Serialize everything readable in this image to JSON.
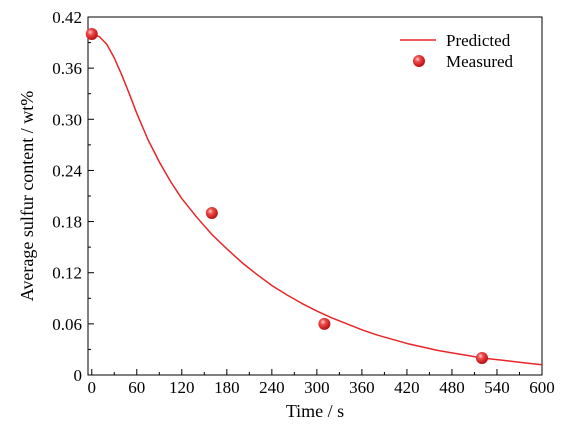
{
  "chart_data": {
    "type": "line",
    "xlabel": "Time / s",
    "ylabel": "Average sulfur content / wt%",
    "xlim": [
      -5,
      600
    ],
    "ylim": [
      0,
      0.42
    ],
    "x_ticks": [
      "0",
      "60",
      "120",
      "180",
      "240",
      "300",
      "360",
      "420",
      "480",
      "540",
      "600"
    ],
    "y_ticks": [
      "0",
      "0.06",
      "0.12",
      "0.18",
      "0.24",
      "0.30",
      "0.36",
      "0.42"
    ],
    "legend_position": "top-right",
    "grid": false,
    "series": [
      {
        "name": "Predicted",
        "kind": "line",
        "color": "#e8262a",
        "x": [
          0,
          10,
          20,
          30,
          40,
          50,
          60,
          75,
          90,
          105,
          120,
          140,
          160,
          180,
          200,
          220,
          240,
          260,
          280,
          300,
          320,
          340,
          360,
          380,
          400,
          420,
          440,
          460,
          480,
          500,
          520,
          540,
          560,
          580,
          600
        ],
        "y": [
          0.4,
          0.397,
          0.388,
          0.372,
          0.352,
          0.33,
          0.307,
          0.276,
          0.25,
          0.227,
          0.207,
          0.185,
          0.165,
          0.148,
          0.132,
          0.118,
          0.105,
          0.094,
          0.084,
          0.075,
          0.067,
          0.06,
          0.053,
          0.047,
          0.042,
          0.037,
          0.033,
          0.029,
          0.026,
          0.023,
          0.02,
          0.018,
          0.016,
          0.014,
          0.012
        ]
      },
      {
        "name": "Measured",
        "kind": "scatter",
        "color": "#e8262a",
        "x": [
          0,
          160,
          310,
          520
        ],
        "y": [
          0.4,
          0.19,
          0.06,
          0.02
        ]
      }
    ]
  }
}
